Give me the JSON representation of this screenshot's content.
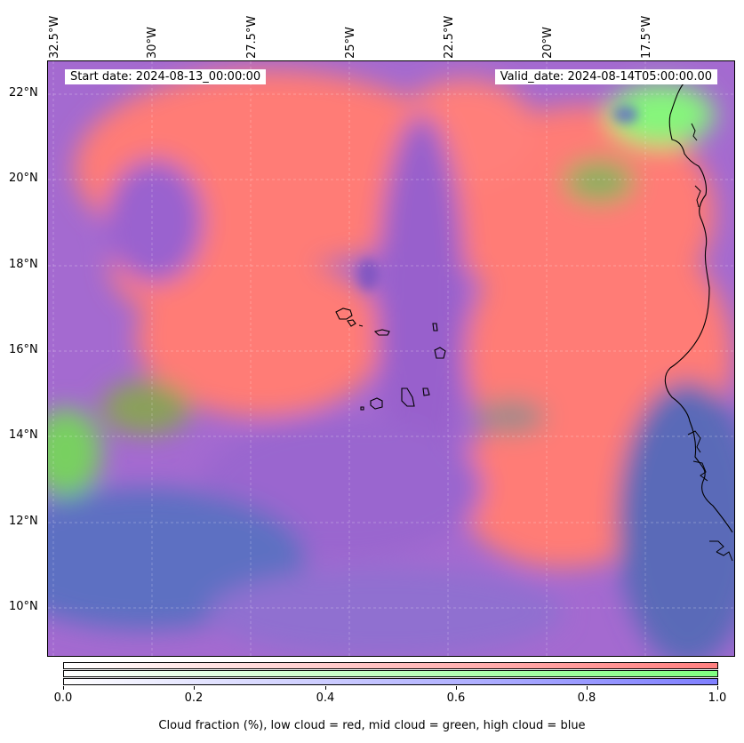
{
  "start_label": "Start date: 2024-08-13_00:00:00",
  "valid_label": "Valid_date: 2024-08-14T05:00:00.00",
  "lon_labels": [
    "32.5°W",
    "30°W",
    "27.5°W",
    "25°W",
    "22.5°W",
    "20°W",
    "17.5°W"
  ],
  "lat_labels": [
    "22°N",
    "20°N",
    "18°N",
    "16°N",
    "14°N",
    "12°N",
    "10°N"
  ],
  "colorbar": {
    "ticks": [
      "0.0",
      "0.2",
      "0.4",
      "0.6",
      "0.8",
      "1.0"
    ],
    "label": "Cloud fraction (%), low cloud = red, mid cloud = green, high cloud = blue",
    "channels": [
      {
        "name": "low cloud",
        "color": "#ff7f7f"
      },
      {
        "name": "mid cloud",
        "color": "#80ff80"
      },
      {
        "name": "high cloud",
        "color": "#7f7fff"
      }
    ]
  },
  "colors": {
    "low_cloud": "#ff7b76",
    "mid_cloud": "#7fe06f",
    "high_cloud": "#5f6fc0",
    "mixed_low_high": "#a46ad0",
    "coastline": "#000000"
  }
}
